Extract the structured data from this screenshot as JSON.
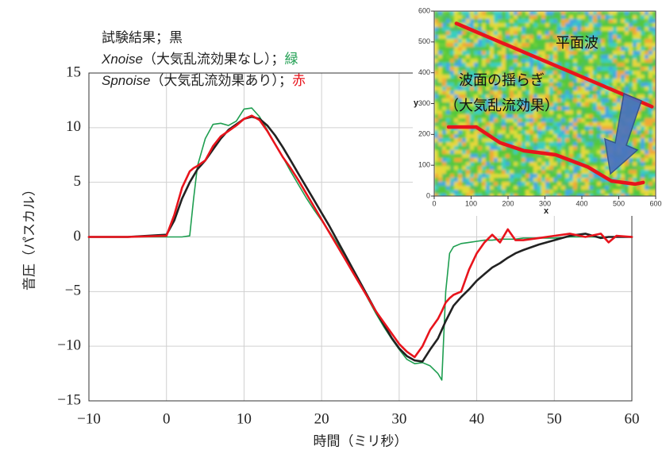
{
  "chart_data": [
    {
      "type": "line",
      "legend_separator": "；",
      "xlabel": "時間（ミリ秒）",
      "ylabel": "音圧（パスカル）",
      "xlim": [
        -10,
        60
      ],
      "ylim": [
        -15,
        15
      ],
      "xticks": [
        {
          "value": -10,
          "label": "−10"
        },
        0,
        10,
        20,
        30,
        40,
        50,
        60
      ],
      "yticks": [
        {
          "value": -15,
          "label": "−15"
        },
        {
          "value": -10,
          "label": "−10"
        },
        {
          "value": -5,
          "label": "−5"
        },
        0,
        5,
        10,
        15
      ],
      "grid": true,
      "x": [
        -10,
        -5,
        0,
        1,
        2,
        3,
        3.5,
        4,
        5,
        6,
        7,
        8,
        9,
        10,
        11,
        12,
        13,
        14,
        15,
        16,
        17,
        18,
        19,
        20,
        21,
        22,
        23,
        24,
        25,
        26,
        27,
        28,
        29,
        30,
        31,
        32,
        33,
        34,
        35,
        35.5,
        36,
        36.5,
        37,
        38,
        39,
        40,
        41,
        42,
        43,
        44,
        45,
        46,
        48,
        50,
        52,
        54,
        56,
        57,
        58,
        60
      ],
      "series": [
        {
          "name": "試験結果",
          "color": "#222222",
          "color_word": "黒",
          "italic": false,
          "values": [
            0,
            0,
            0.2,
            1.5,
            3.5,
            5,
            5.6,
            6.2,
            7,
            8,
            9,
            9.8,
            10.3,
            10.8,
            11,
            10.8,
            10.2,
            9.3,
            8.2,
            7,
            5.8,
            4.6,
            3.4,
            2.2,
            1,
            -0.3,
            -1.6,
            -2.9,
            -4.2,
            -5.5,
            -6.8,
            -8,
            -9.2,
            -10.2,
            -10.9,
            -11.3,
            -11.4,
            -10.3,
            -9.3,
            -8.5,
            -7.7,
            -7,
            -6.3,
            -5.5,
            -4.8,
            -4,
            -3.4,
            -2.8,
            -2.4,
            -1.9,
            -1.5,
            -1.2,
            -0.7,
            -0.3,
            0.1,
            0.3,
            -0.1,
            0,
            0,
            0
          ]
        },
        {
          "name": "Xnoise",
          "note": "（大気乱流効果なし）",
          "color": "#1e9e50",
          "color_word": "緑",
          "italic": true,
          "values": [
            0,
            0,
            0,
            0,
            0,
            0.1,
            3.5,
            6.5,
            9,
            10.3,
            10.4,
            10.2,
            10.6,
            11.7,
            11.8,
            11,
            9.8,
            8.5,
            7.3,
            6,
            4.8,
            3.6,
            2.5,
            1.5,
            0.5,
            -0.6,
            -1.7,
            -3,
            -4.3,
            -5.7,
            -7,
            -8.2,
            -9.3,
            -10.3,
            -11.2,
            -11.6,
            -11.5,
            -11.8,
            -12.5,
            -13.1,
            -5,
            -1.5,
            -0.9,
            -0.6,
            -0.5,
            -0.4,
            -0.3,
            -0.3,
            -0.2,
            -0.2,
            -0.2,
            -0.1,
            -0.1,
            -0.1,
            0,
            0,
            0,
            0,
            0,
            0
          ]
        },
        {
          "name": "Spnoise",
          "note": "（大気乱流効果あり）",
          "color": "#e8141c",
          "color_word": "赤",
          "italic": true,
          "values": [
            0,
            0,
            0.1,
            2,
            4.5,
            6,
            6.3,
            6.5,
            7,
            8.3,
            9.2,
            9.7,
            10.2,
            10.8,
            11.1,
            10.7,
            9.7,
            8.5,
            7.3,
            6.3,
            5.2,
            4,
            2.8,
            1.6,
            0.4,
            -0.8,
            -2,
            -3.2,
            -4.4,
            -5.6,
            -6.8,
            -7.8,
            -8.8,
            -9.8,
            -10.5,
            -11,
            -10,
            -8.5,
            -7.5,
            -6.8,
            -6,
            -5.6,
            -5.3,
            -5,
            -3,
            -1.5,
            -0.5,
            0.2,
            -0.5,
            0.7,
            -0.3,
            -0.3,
            -0.1,
            0.1,
            0.3,
            0,
            0.3,
            -0.5,
            0.1,
            0
          ]
        }
      ]
    },
    {
      "type": "line",
      "xlabel": "x",
      "ylabel": "y",
      "xlim": [
        0,
        600
      ],
      "ylim": [
        0,
        600
      ],
      "xticks": [
        0,
        100,
        200,
        300,
        400,
        500,
        600
      ],
      "yticks": [
        0,
        100,
        200,
        300,
        400,
        500,
        600
      ],
      "annotations": [
        "平面波",
        "波面の揺らぎ",
        "（大気乱流効果）"
      ],
      "series": [
        {
          "color": "#e8141c",
          "x": [
            60,
            590
          ],
          "values": [
            560,
            290
          ]
        },
        {
          "color": "#e8141c",
          "x": [
            39,
            114,
            178,
            243,
            329,
            415,
            480,
            544,
            566
          ],
          "values": [
            224,
            224,
            173,
            147,
            134,
            95,
            49,
            39,
            44
          ]
        }
      ]
    }
  ]
}
